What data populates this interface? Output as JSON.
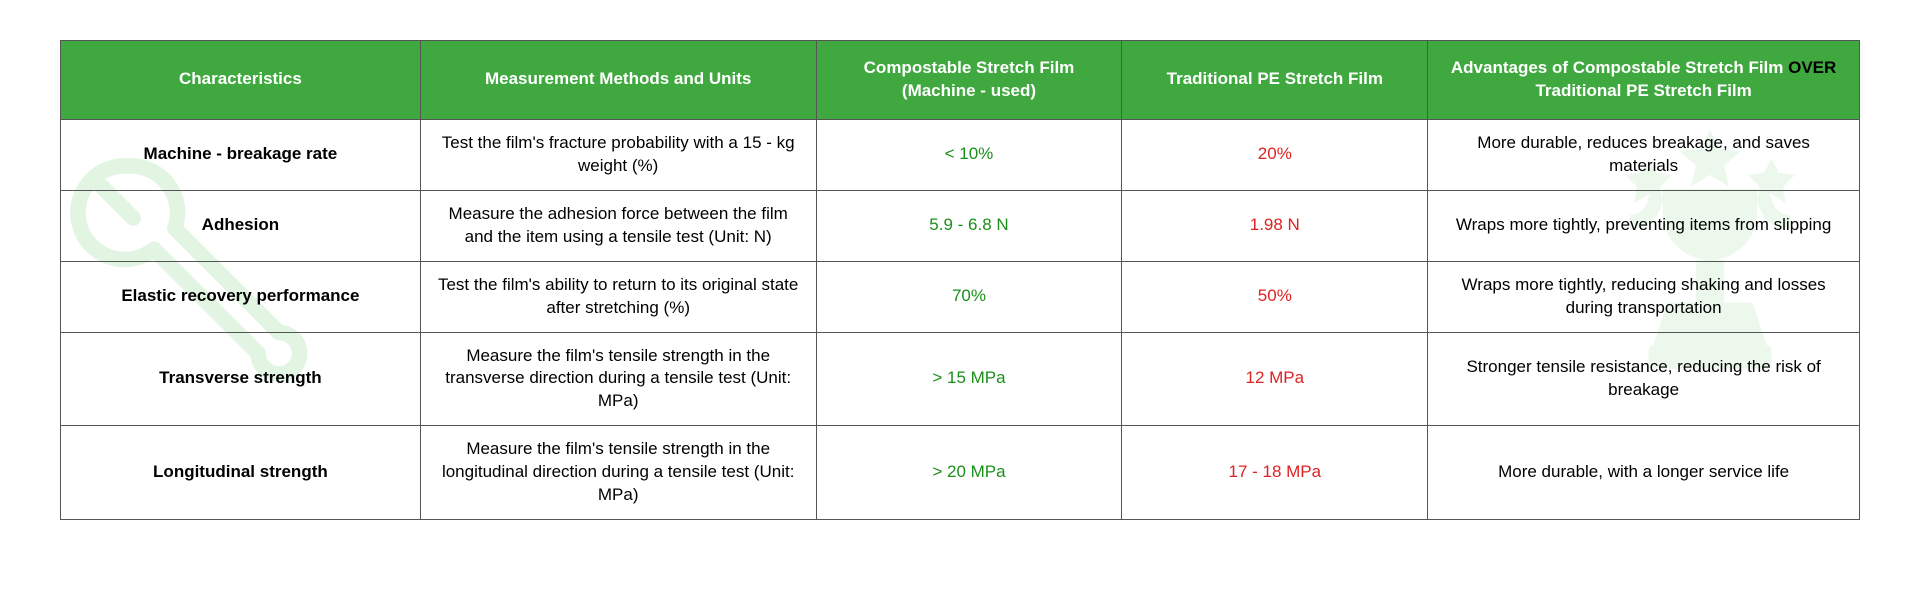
{
  "table": {
    "header_bg": "#3fa93f",
    "header_color": "#ffffff",
    "border_color": "#555555",
    "comp_color": "#1a8f1a",
    "trad_color": "#dd2222",
    "columns": [
      "Characteristics",
      "Measurement Methods and Units",
      "Compostable Stretch Film (Machine - used)",
      "Traditional PE Stretch Film",
      "Advantages of Compostable Stretch Film"
    ],
    "advantages_over_word": "OVER",
    "advantages_tail": "Traditional PE Stretch Film",
    "rows": [
      {
        "char": "Machine - breakage rate",
        "method": "Test the film's fracture probability with a 15 - kg weight (%)",
        "comp": "< 10%",
        "trad": "20%",
        "adv": "More durable, reduces breakage, and saves materials"
      },
      {
        "char": "Adhesion",
        "method": "Measure the adhesion force between the film and the item using a tensile test (Unit: N)",
        "comp": "5.9 - 6.8 N",
        "trad": "1.98 N",
        "adv": "Wraps more tightly, preventing items from slipping"
      },
      {
        "char": "Elastic recovery performance",
        "method": "Test the film's ability to return to its original state after stretching (%)",
        "comp": "70%",
        "trad": "50%",
        "adv": "Wraps more tightly, reducing shaking and losses during transportation"
      },
      {
        "char": "Transverse strength",
        "method": "Measure the film's tensile strength in the transverse direction during a tensile test (Unit: MPa)",
        "comp": "> 15 MPa",
        "trad": "12 MPa",
        "adv": "Stronger tensile resistance, reducing the risk of breakage"
      },
      {
        "char": "Longitudinal strength",
        "method": "Measure the film's tensile strength in the longitudinal direction during a tensile test (Unit: MPa)",
        "comp": "> 20 MPa",
        "trad": "17 - 18 MPa",
        "adv": "More durable, with a longer service life"
      }
    ]
  }
}
